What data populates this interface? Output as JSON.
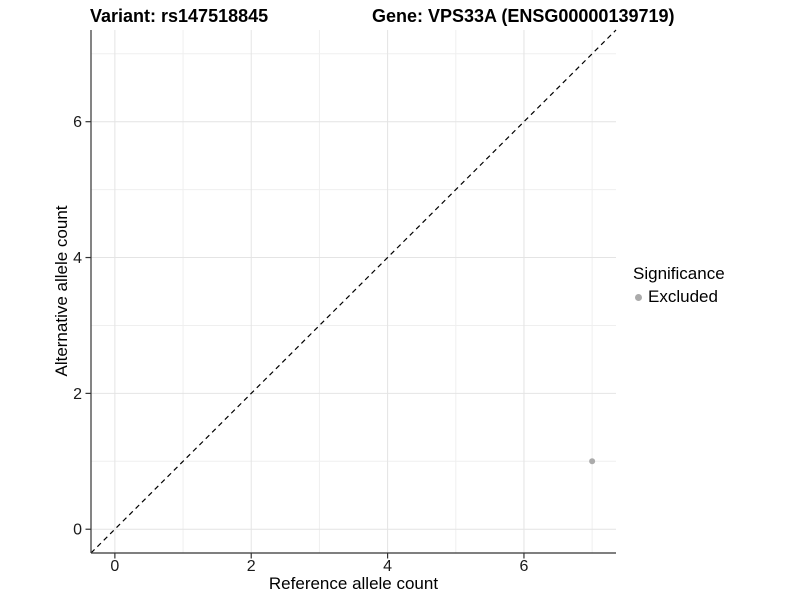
{
  "chart_data": {
    "type": "scatter",
    "title_left": "Variant: rs147518845",
    "title_right": "Gene: VPS33A (ENSG00000139719)",
    "xlabel": "Reference allele count",
    "ylabel": "Alternative allele count",
    "xlim": [
      -0.35,
      7.35
    ],
    "ylim": [
      -0.35,
      7.35
    ],
    "x_major_ticks": [
      0,
      2,
      4,
      6
    ],
    "y_major_ticks": [
      0,
      2,
      4,
      6
    ],
    "x_minor_gridlines": [
      1,
      3,
      5,
      7
    ],
    "y_minor_gridlines": [
      1,
      3,
      5,
      7
    ],
    "grid": true,
    "identity_line": {
      "equation": "y = x",
      "style": "dashed",
      "color": "#000000"
    },
    "series": [
      {
        "name": "Excluded",
        "color": "#ababab",
        "points": [
          {
            "x": 7,
            "y": 1
          }
        ]
      }
    ],
    "legend": {
      "title": "Significance",
      "position": "right",
      "items": [
        {
          "label": "Excluded",
          "color": "#ababab",
          "marker": "point"
        }
      ]
    },
    "colors": {
      "background": "#ffffff",
      "axis_line": "#333333",
      "tick_mark": "#333333",
      "tick_text": "#1a1a1a",
      "grid_major": "#e4e4e4",
      "grid_minor": "#efefef"
    }
  }
}
